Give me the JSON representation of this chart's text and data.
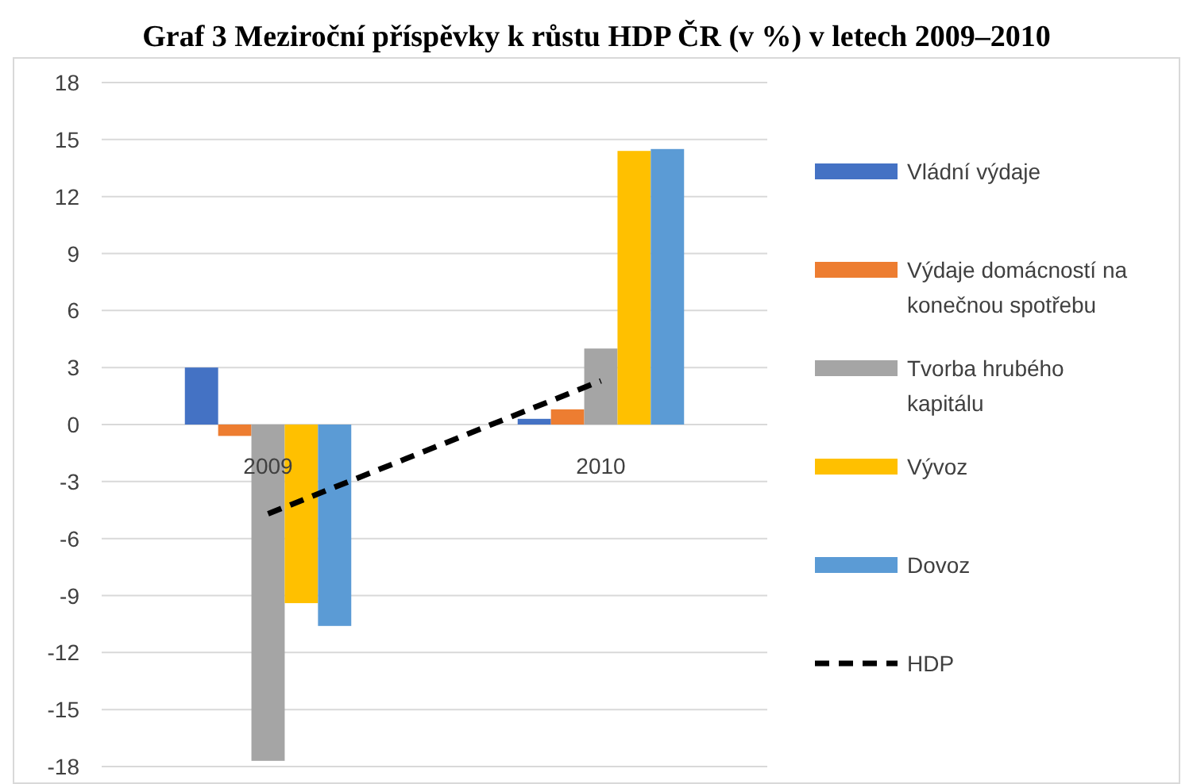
{
  "chart_data": {
    "type": "bar",
    "title": "Graf 3 Meziroční příspěvky k růstu HDP ČR (v %) v letech 2009–2010",
    "categories": [
      "2009",
      "2010"
    ],
    "series": [
      {
        "name": "Vládní výdaje",
        "color": "#4472c4",
        "values": [
          3.0,
          0.3
        ]
      },
      {
        "name": "Výdaje domácností na konečnou spotřebu",
        "color": "#ed7d31",
        "values": [
          -0.6,
          0.8
        ]
      },
      {
        "name": "Tvorba hrubého kapitálu",
        "color": "#a5a5a5",
        "values": [
          -17.7,
          4.0
        ]
      },
      {
        "name": "Vývoz",
        "color": "#ffc000",
        "values": [
          -9.4,
          14.4
        ]
      },
      {
        "name": "Dovoz",
        "color": "#5b9bd5",
        "values": [
          -10.6,
          14.5
        ]
      },
      {
        "name": "HDP",
        "type": "line",
        "color": "#000000",
        "line_style": "dashed",
        "values": [
          -4.7,
          2.3
        ]
      }
    ],
    "ylim": [
      -18,
      18
    ],
    "yticks": [
      -18,
      -15,
      -12,
      -9,
      -6,
      -3,
      0,
      3,
      6,
      9,
      12,
      15,
      18
    ],
    "grid": "y",
    "legend": "right"
  }
}
